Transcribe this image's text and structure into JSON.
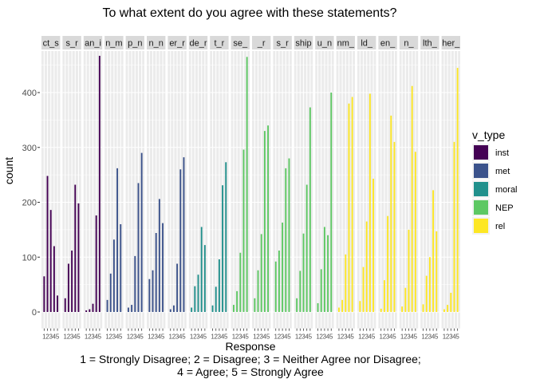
{
  "chart_data": {
    "type": "bar",
    "title": "To what extent do you agree with these statements?",
    "xlabel": "Response",
    "xlabel_notes": [
      "1 = Strongly Disagree; 2 = Disagree; 3 = Neither Agree nor Disagree;",
      "4 = Agree; 5 = Strongly Agree"
    ],
    "ylabel": "count",
    "ylim": [
      0,
      500
    ],
    "y_ticks": [
      0,
      100,
      200,
      300,
      400
    ],
    "categories": [
      "1",
      "2",
      "3",
      "4",
      "5"
    ],
    "grid": true,
    "legend": {
      "title": "v_type",
      "placement": "right",
      "entries": [
        {
          "label": "inst",
          "color": "#440154"
        },
        {
          "label": "met",
          "color": "#3B528B"
        },
        {
          "label": "moral",
          "color": "#21908C"
        },
        {
          "label": "NEP",
          "color": "#5DC863"
        },
        {
          "label": "rel",
          "color": "#FDE725"
        }
      ]
    },
    "panels": [
      {
        "strip": "ct_s",
        "type": "inst",
        "values": [
          65,
          248,
          186,
          120,
          30
        ]
      },
      {
        "strip": "s_r",
        "type": "inst",
        "values": [
          25,
          88,
          112,
          232,
          198
        ]
      },
      {
        "strip": "an_i",
        "type": "inst",
        "values": [
          3,
          5,
          15,
          176,
          467
        ]
      },
      {
        "strip": "n_m",
        "type": "met",
        "values": [
          22,
          70,
          132,
          262,
          160
        ]
      },
      {
        "strip": "p_n",
        "type": "met",
        "values": [
          8,
          13,
          102,
          235,
          290
        ]
      },
      {
        "strip": "n_n",
        "type": "met",
        "values": [
          60,
          76,
          144,
          206,
          162
        ]
      },
      {
        "strip": "er_r",
        "type": "met",
        "values": [
          5,
          12,
          88,
          260,
          282
        ]
      },
      {
        "strip": "de_r",
        "type": "moral",
        "values": [
          8,
          47,
          68,
          155,
          122
        ]
      },
      {
        "strip": "t_r",
        "type": "moral",
        "values": [
          12,
          46,
          96,
          231,
          273
        ]
      },
      {
        "strip": "se_",
        "type": "NEP",
        "values": [
          13,
          38,
          108,
          296,
          465
        ]
      },
      {
        "strip": "_r",
        "type": "NEP",
        "values": [
          25,
          76,
          142,
          330,
          340
        ]
      },
      {
        "strip": "s_r",
        "type": "NEP",
        "values": [
          92,
          112,
          163,
          262,
          280
        ]
      },
      {
        "strip": "ship",
        "type": "NEP",
        "values": [
          25,
          75,
          143,
          232,
          373
        ]
      },
      {
        "strip": "u_n",
        "type": "NEP",
        "values": [
          16,
          78,
          155,
          140,
          400
        ]
      },
      {
        "strip": "nm_",
        "type": "rel",
        "values": [
          8,
          22,
          105,
          380,
          392
        ]
      },
      {
        "strip": "ld_",
        "type": "rel",
        "values": [
          20,
          82,
          165,
          398,
          243
        ]
      },
      {
        "strip": "en_",
        "type": "rel",
        "values": [
          6,
          58,
          175,
          358,
          310
        ]
      },
      {
        "strip": "n_",
        "type": "rel",
        "values": [
          10,
          44,
          150,
          412,
          292
        ]
      },
      {
        "strip": "lth_",
        "type": "rel",
        "values": [
          14,
          66,
          100,
          222,
          147
        ]
      },
      {
        "strip": "her_",
        "type": "rel",
        "values": [
          5,
          13,
          35,
          310,
          445
        ]
      }
    ]
  }
}
